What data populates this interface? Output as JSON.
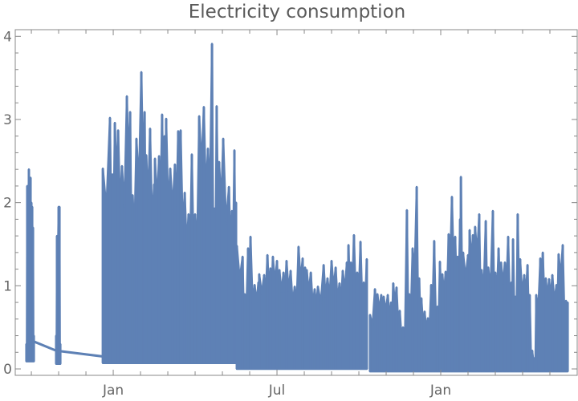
{
  "chart_data": {
    "type": "line",
    "title": "Electricity consumption",
    "xlabel": "",
    "ylabel": "",
    "x_units": "months relative to first January shown",
    "xlim": [
      -3.59,
      17.0
    ],
    "ylim": [
      -0.077,
      4.08
    ],
    "xticks": [
      {
        "value": 0,
        "label": "Jan"
      },
      {
        "value": 6,
        "label": "Jul"
      },
      {
        "value": 12,
        "label": "Jan"
      }
    ],
    "yticks": [
      {
        "value": 0,
        "label": "0"
      },
      {
        "value": 1,
        "label": "1"
      },
      {
        "value": 2,
        "label": "2"
      },
      {
        "value": 3,
        "label": "3"
      },
      {
        "value": 4,
        "label": "4"
      }
    ],
    "color": "#5E81B5",
    "grid": false,
    "connector": [
      [
        -2.91,
        0.33
      ],
      [
        -2.09,
        0.22
      ],
      [
        -0.38,
        0.15
      ]
    ],
    "segments": [
      {
        "min": 0.09,
        "peaks": [
          [
            -3.18,
            0.3
          ],
          [
            -3.15,
            2.2
          ],
          [
            -3.09,
            2.4
          ],
          [
            -3.03,
            2.3
          ],
          [
            -3.0,
            2.0
          ],
          [
            -2.97,
            1.95
          ],
          [
            -2.94,
            1.7
          ],
          [
            -2.91,
            0.4
          ]
        ]
      },
      {
        "min": 0.06,
        "peaks": [
          [
            -2.09,
            0.4
          ],
          [
            -2.06,
            1.6
          ],
          [
            -2.0,
            1.95
          ],
          [
            -1.97,
            1.95
          ],
          [
            -1.94,
            0.3
          ]
        ]
      },
      {
        "min": 0.07,
        "peaks": [
          [
            -0.38,
            2.41
          ],
          [
            -0.12,
            3.02
          ],
          [
            -0.03,
            2.34
          ],
          [
            0.06,
            2.96
          ],
          [
            0.18,
            2.87
          ],
          [
            0.32,
            2.44
          ],
          [
            0.5,
            3.28
          ],
          [
            0.62,
            3.09
          ],
          [
            0.71,
            2.09
          ],
          [
            0.85,
            2.77
          ],
          [
            1.03,
            3.57
          ],
          [
            1.15,
            3.09
          ],
          [
            1.21,
            2.57
          ],
          [
            1.35,
            2.89
          ],
          [
            1.5,
            2.22
          ],
          [
            1.53,
            2.53
          ],
          [
            1.68,
            2.56
          ],
          [
            1.79,
            3.06
          ],
          [
            1.88,
            2.8
          ],
          [
            1.94,
            3.01
          ],
          [
            2.09,
            2.41
          ],
          [
            2.26,
            2.46
          ],
          [
            2.38,
            2.86
          ],
          [
            2.47,
            2.87
          ],
          [
            2.62,
            2.12
          ],
          [
            2.76,
            1.86
          ],
          [
            2.88,
            2.58
          ],
          [
            3.0,
            1.86
          ],
          [
            3.15,
            3.04
          ],
          [
            3.32,
            3.15
          ],
          [
            3.47,
            2.65
          ],
          [
            3.62,
            3.91
          ],
          [
            3.71,
            1.93
          ],
          [
            3.79,
            3.16
          ],
          [
            3.88,
            2.49
          ],
          [
            4.03,
            2.77
          ],
          [
            4.24,
            2.19
          ],
          [
            4.35,
            1.9
          ],
          [
            4.44,
            2.63
          ],
          [
            4.5,
            2.0
          ]
        ]
      },
      {
        "min": 0.0,
        "peaks": [
          [
            4.53,
            1.48
          ],
          [
            4.74,
            1.35
          ],
          [
            4.82,
            0.9
          ],
          [
            4.94,
            1.45
          ],
          [
            5.03,
            1.59
          ],
          [
            5.18,
            1.01
          ],
          [
            5.32,
            1.04
          ],
          [
            5.35,
            1.14
          ],
          [
            5.53,
            1.13
          ],
          [
            5.65,
            1.37
          ],
          [
            5.76,
            1.21
          ],
          [
            5.85,
            1.35
          ],
          [
            6.0,
            1.3
          ],
          [
            6.09,
            1.19
          ],
          [
            6.24,
            1.16
          ],
          [
            6.35,
            1.3
          ],
          [
            6.5,
            1.18
          ],
          [
            6.65,
            0.99
          ],
          [
            6.79,
            1.47
          ],
          [
            6.94,
            1.33
          ],
          [
            7.03,
            1.22
          ],
          [
            7.09,
            1.19
          ],
          [
            7.24,
            1.16
          ],
          [
            7.38,
            0.96
          ],
          [
            7.5,
            0.99
          ],
          [
            7.71,
            1.25
          ],
          [
            7.85,
            1.09
          ],
          [
            8.0,
            1.3
          ],
          [
            8.15,
            1.22
          ],
          [
            8.29,
            1.03
          ],
          [
            8.41,
            1.18
          ],
          [
            8.56,
            1.28
          ],
          [
            8.62,
            1.49
          ],
          [
            8.71,
            1.28
          ],
          [
            8.82,
            1.61
          ],
          [
            8.94,
            1.16
          ],
          [
            9.06,
            1.53
          ],
          [
            9.18,
            1.04
          ],
          [
            9.29,
            1.32
          ]
        ]
      },
      {
        "min": -0.03,
        "peaks": [
          [
            9.41,
            0.65
          ],
          [
            9.59,
            0.96
          ],
          [
            9.68,
            0.9
          ],
          [
            9.82,
            0.89
          ],
          [
            9.91,
            0.87
          ],
          [
            10.06,
            0.89
          ],
          [
            10.18,
            0.8
          ],
          [
            10.26,
            1.03
          ],
          [
            10.38,
            0.98
          ],
          [
            10.5,
            0.7
          ],
          [
            10.62,
            0.5
          ],
          [
            10.76,
            1.91
          ],
          [
            10.85,
            0.9
          ],
          [
            10.97,
            1.45
          ],
          [
            11.12,
            2.19
          ],
          [
            11.21,
            1.09
          ],
          [
            11.29,
            0.85
          ],
          [
            11.41,
            0.69
          ],
          [
            11.53,
            0.61
          ],
          [
            11.65,
            1.01
          ],
          [
            11.76,
            1.54
          ],
          [
            11.88,
            0.75
          ],
          [
            11.97,
            1.29
          ],
          [
            12.06,
            1.14
          ],
          [
            12.18,
            1.17
          ],
          [
            12.29,
            1.62
          ],
          [
            12.41,
            2.07
          ],
          [
            12.53,
            1.59
          ],
          [
            12.62,
            1.35
          ],
          [
            12.71,
            1.8
          ],
          [
            12.74,
            2.31
          ],
          [
            12.82,
            1.4
          ],
          [
            13.0,
            1.37
          ],
          [
            13.06,
            1.67
          ],
          [
            13.18,
            1.61
          ],
          [
            13.26,
            1.71
          ],
          [
            13.41,
            1.86
          ],
          [
            13.5,
            1.19
          ],
          [
            13.65,
            1.78
          ],
          [
            13.74,
            1.22
          ],
          [
            13.91,
            1.9
          ],
          [
            14.0,
            1.16
          ],
          [
            14.12,
            1.45
          ],
          [
            14.21,
            1.28
          ],
          [
            14.35,
            1.28
          ],
          [
            14.47,
            1.59
          ],
          [
            14.59,
            1.04
          ],
          [
            14.65,
            1.56
          ],
          [
            14.74,
            0.87
          ],
          [
            14.82,
            1.86
          ],
          [
            14.91,
            1.32
          ],
          [
            15.06,
            1.13
          ],
          [
            15.18,
            1.25
          ],
          [
            15.26,
            0.89
          ],
          [
            15.35,
            0.22
          ],
          [
            15.44,
            0.13
          ],
          [
            15.5,
            0.89
          ],
          [
            15.65,
            1.33
          ],
          [
            15.74,
            1.4
          ],
          [
            15.85,
            1.09
          ],
          [
            15.97,
            1.08
          ],
          [
            16.09,
            1.13
          ],
          [
            16.24,
            1.01
          ],
          [
            16.32,
            1.38
          ],
          [
            16.47,
            1.49
          ],
          [
            16.59,
            0.82
          ],
          [
            16.65,
            0.8
          ]
        ]
      }
    ]
  }
}
